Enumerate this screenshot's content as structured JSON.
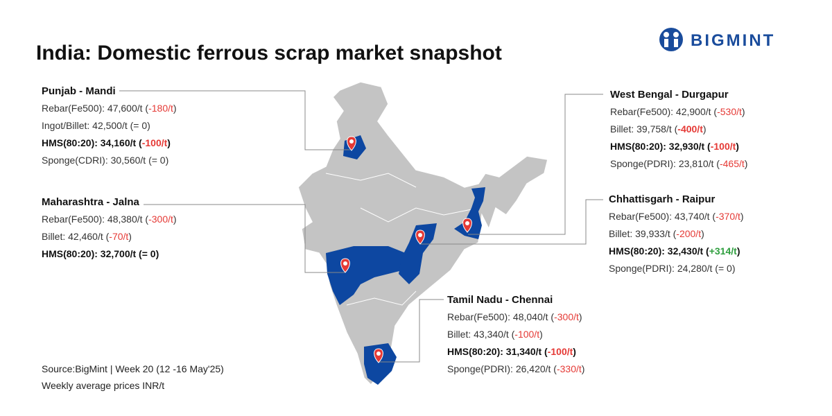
{
  "header": {
    "title": "India: Domestic ferrous scrap market snapshot",
    "logo": "BIGMINT"
  },
  "regions": [
    {
      "title": "Punjab - Mandi",
      "lines": [
        [
          {
            "text": "Rebar(Fe500): 47,600/t ("
          },
          {
            "text": "-180/t",
            "color": "#e53935"
          },
          {
            "text": ")"
          }
        ],
        [
          {
            "text": "Ingot/Billet: 42,500/t (= 0)"
          }
        ],
        [
          {
            "text": "HMS(80:20): 34,160/t (",
            "bold": true
          },
          {
            "text": "-100/t",
            "color": "#e53935",
            "bold": true
          },
          {
            "text": ")",
            "bold": true
          }
        ],
        [
          {
            "text": "Sponge(CDRI): 30,560/t (= 0)"
          }
        ]
      ]
    },
    {
      "title": "Maharashtra - Jalna",
      "lines": [
        [
          {
            "text": "Rebar(Fe500): 48,380/t ("
          },
          {
            "text": "-300/t",
            "color": "#e53935"
          },
          {
            "text": ")"
          }
        ],
        [
          {
            "text": "Billet: 42,460/t ("
          },
          {
            "text": "-70/t",
            "color": "#e53935"
          },
          {
            "text": ")"
          }
        ],
        [
          {
            "text": "HMS(80:20): 32,700/t (= 0)",
            "bold": true
          }
        ]
      ]
    },
    {
      "title": "West Bengal - Durgapur",
      "lines": [
        [
          {
            "text": "Rebar(Fe500): 42,900/t ("
          },
          {
            "text": "-530/t",
            "color": "#e53935"
          },
          {
            "text": ")"
          }
        ],
        [
          {
            "text": "Billet: 39,758/t ("
          },
          {
            "text": "-400/t",
            "color": "#e53935",
            "bold": true
          },
          {
            "text": ")"
          }
        ],
        [
          {
            "text": "HMS(80:20): 32,930/t (",
            "bold": true
          },
          {
            "text": "-100/t",
            "color": "#e53935",
            "bold": true
          },
          {
            "text": ")",
            "bold": true
          }
        ],
        [
          {
            "text": "Sponge(PDRI): 23,810/t ("
          },
          {
            "text": "-465/t",
            "color": "#e53935"
          },
          {
            "text": ")"
          }
        ]
      ]
    },
    {
      "title": "Chhattisgarh - Raipur",
      "lines": [
        [
          {
            "text": "Rebar(Fe500): 43,740/t ("
          },
          {
            "text": "-370/t",
            "color": "#e53935"
          },
          {
            "text": ")"
          }
        ],
        [
          {
            "text": "Billet: 39,933/t ("
          },
          {
            "text": "-200/t",
            "color": "#e53935"
          },
          {
            "text": ")"
          }
        ],
        [
          {
            "text": "HMS(80:20): 32,430/t (",
            "bold": true
          },
          {
            "text": "+314/t",
            "color": "#2e9e3e",
            "bold": true
          },
          {
            "text": ")",
            "bold": true
          }
        ],
        [
          {
            "text": "Sponge(PDRI): 24,280/t (= 0)"
          }
        ]
      ]
    },
    {
      "title": "Tamil Nadu - Chennai",
      "lines": [
        [
          {
            "text": "Rebar(Fe500): 48,040/t ("
          },
          {
            "text": "-300/t",
            "color": "#e53935"
          },
          {
            "text": ")"
          }
        ],
        [
          {
            "text": "Billet: 43,340/t ("
          },
          {
            "text": "-100/t",
            "color": "#e53935"
          },
          {
            "text": ")"
          }
        ],
        [
          {
            "text": "HMS(80:20): 31,340/t (",
            "bold": true
          },
          {
            "text": "-100/t",
            "color": "#e53935",
            "bold": true
          },
          {
            "text": ")",
            "bold": true
          }
        ],
        [
          {
            "text": "Sponge(PDRI): 26,420/t ("
          },
          {
            "text": "-330/t",
            "color": "#e53935"
          },
          {
            "text": ")"
          }
        ]
      ]
    }
  ],
  "footer": {
    "source": "Source:BigMint | Week 20 (12 -16 May'25)",
    "note": "Weekly average prices INR/t"
  }
}
